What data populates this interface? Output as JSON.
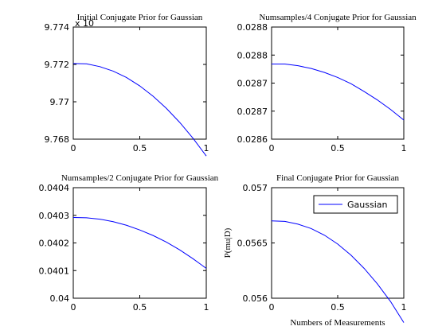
{
  "chart_data": [
    {
      "type": "line",
      "title": "Initial Conjugate Prior for Gaussian",
      "xlabel": "",
      "ylabel": "",
      "xlim": [
        0,
        1
      ],
      "ylim": [
        9.768,
        9.774
      ],
      "exponent_label": "x 10",
      "xticks": [
        "0",
        "0.5",
        "1"
      ],
      "yticks": [
        "9.768",
        "9.77",
        "9.772",
        "9.774"
      ],
      "series": [
        {
          "x": [
            0,
            0.1,
            0.2,
            0.3,
            0.4,
            0.5,
            0.6,
            0.7,
            0.8,
            0.9,
            1.0
          ],
          "values": [
            9.77205,
            9.77203,
            9.77188,
            9.77164,
            9.7713,
            9.77085,
            9.7703,
            9.76965,
            9.7689,
            9.76805,
            9.7671
          ]
        }
      ],
      "line_color": "#0000ff"
    },
    {
      "type": "line",
      "title": "Numsamples/4 Conjugate Prior for Gaussian",
      "xlabel": "",
      "ylabel": "",
      "xlim": [
        0,
        1
      ],
      "ylim": [
        0.0286,
        0.0288
      ],
      "xticks": [
        "0",
        "0.5",
        "1"
      ],
      "yticks": [
        "0.0286",
        "0.0287",
        "0.0287",
        "0.0288",
        "0.0288"
      ],
      "series": [
        {
          "x": [
            0,
            0.1,
            0.2,
            0.3,
            0.4,
            0.5,
            0.6,
            0.7,
            0.8,
            0.9,
            1.0
          ],
          "values": [
            0.028734,
            0.028734,
            0.028731,
            0.028726,
            0.028719,
            0.02871,
            0.028699,
            0.028685,
            0.02867,
            0.028653,
            0.028634
          ]
        }
      ],
      "line_color": "#0000ff"
    },
    {
      "type": "line",
      "title": "Numsamples/2 Conjugate Prior for Gaussian",
      "xlabel": "",
      "ylabel": "",
      "xlim": [
        0,
        1
      ],
      "ylim": [
        0.04,
        0.0404
      ],
      "xticks": [
        "0",
        "0.5",
        "1"
      ],
      "yticks": [
        "0.04",
        "0.0401",
        "0.0402",
        "0.0403",
        "0.0404"
      ],
      "series": [
        {
          "x": [
            0,
            0.1,
            0.2,
            0.3,
            0.4,
            0.5,
            0.6,
            0.7,
            0.8,
            0.9,
            1.0
          ],
          "values": [
            0.040292,
            0.040291,
            0.040286,
            0.040277,
            0.040264,
            0.040247,
            0.040227,
            0.040203,
            0.040175,
            0.040143,
            0.040108
          ]
        }
      ],
      "line_color": "#0000ff"
    },
    {
      "type": "line",
      "title": "Final Conjugate Prior for Gaussian",
      "xlabel": "Numbers of Measurements",
      "ylabel": "P(mu|D)",
      "xlim": [
        0,
        1
      ],
      "ylim": [
        0.056,
        0.057
      ],
      "xticks": [
        "0",
        "0.5",
        "1"
      ],
      "yticks": [
        "0.056",
        "0.0565",
        "0.057"
      ],
      "legend": {
        "position": "top-right",
        "entries": [
          "Gaussian"
        ]
      },
      "series": [
        {
          "name": "Gaussian",
          "x": [
            0,
            0.1,
            0.2,
            0.3,
            0.4,
            0.5,
            0.6,
            0.7,
            0.8,
            0.9,
            1.0
          ],
          "values": [
            0.0567,
            0.056695,
            0.05667,
            0.05663,
            0.05657,
            0.05649,
            0.05639,
            0.05627,
            0.05613,
            0.05597,
            0.05578
          ]
        }
      ],
      "line_color": "#0000ff"
    }
  ]
}
